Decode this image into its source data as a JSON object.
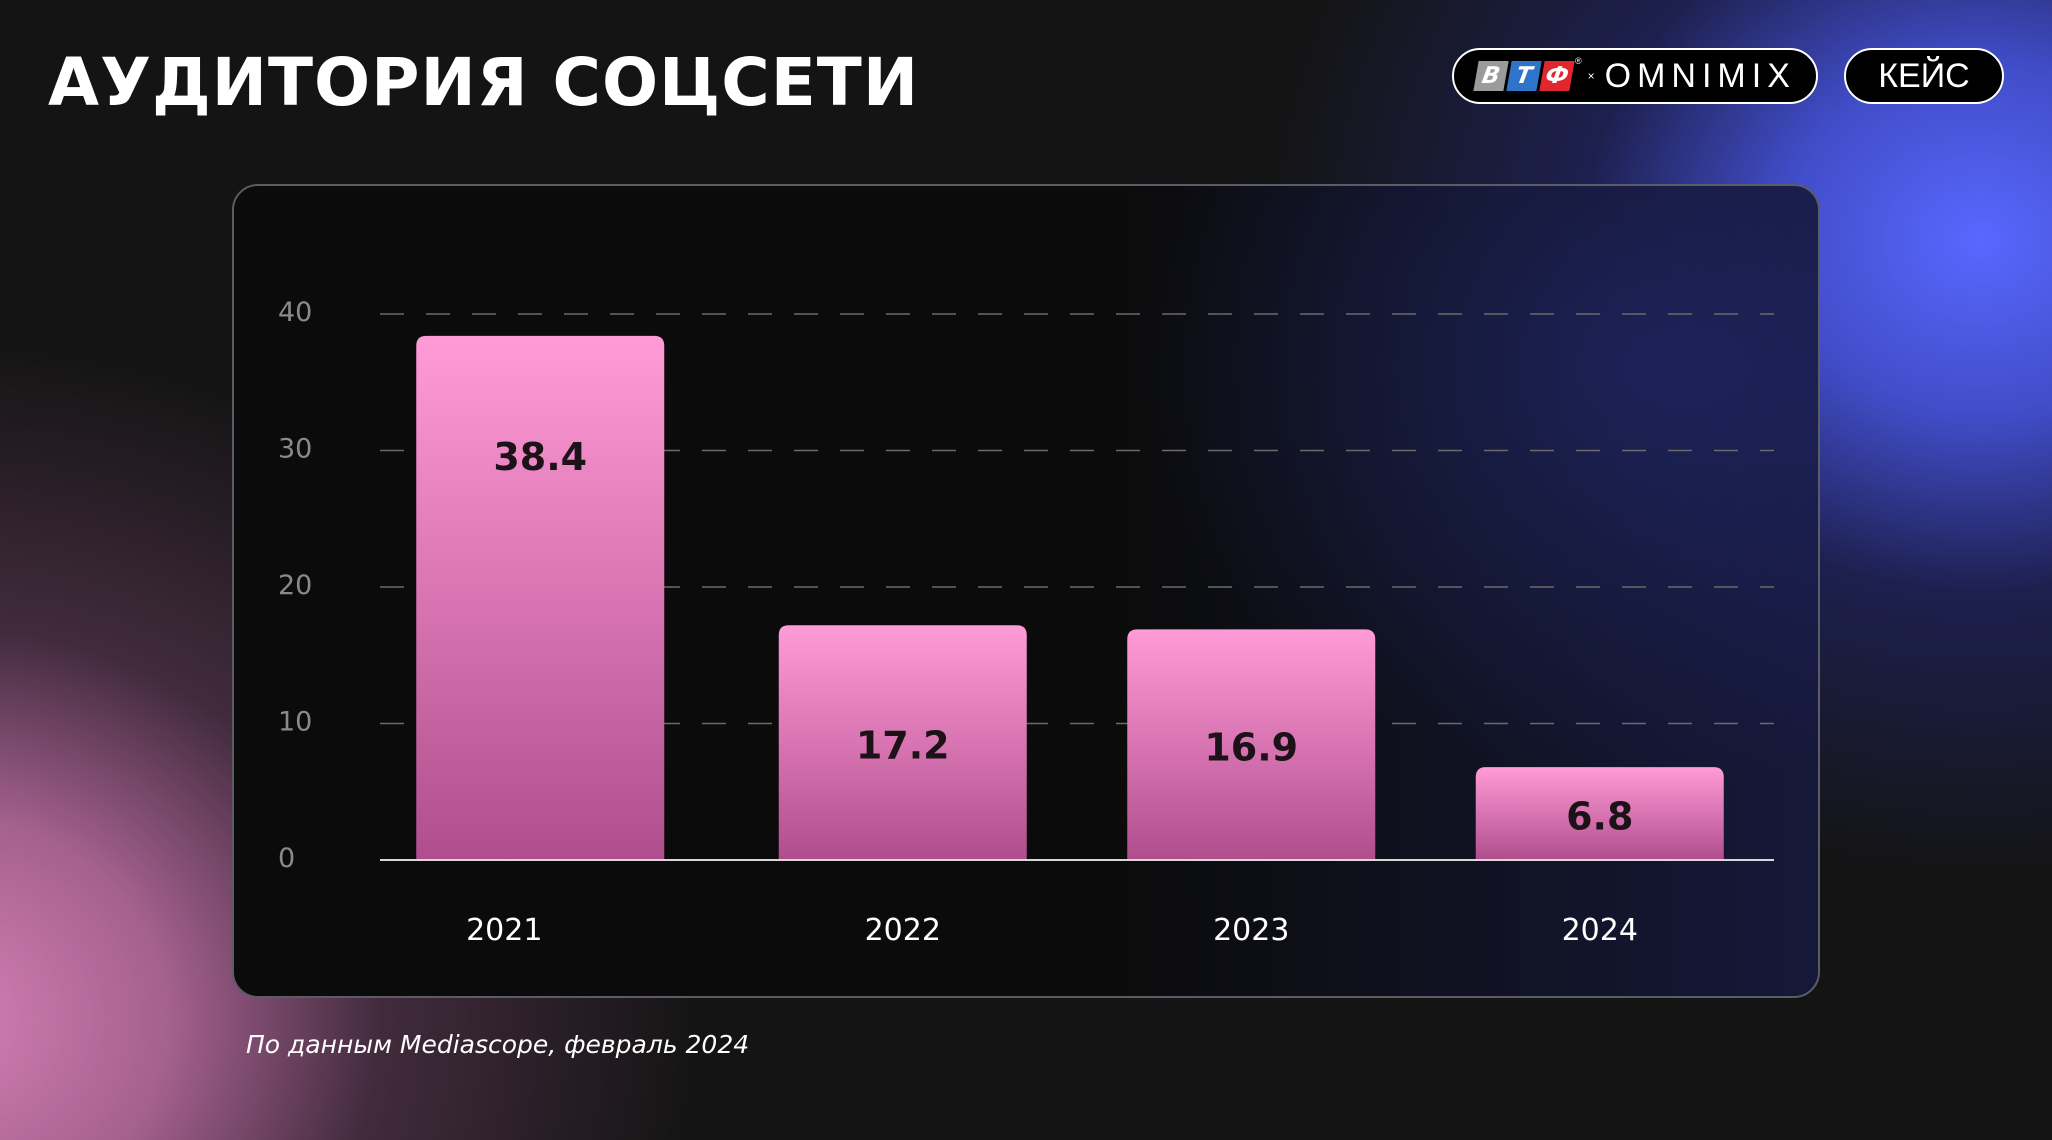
{
  "header": {
    "title": "АУДИТОРИЯ СОЦСЕТИ",
    "logo": {
      "letters": [
        {
          "char": "В",
          "color": "#9b9b9b"
        },
        {
          "char": "Т",
          "color": "#2e74c9"
        },
        {
          "char": "Ф",
          "color": "#e2262e"
        }
      ],
      "registered": "®",
      "separator": "×",
      "partner": "OMNIMIX"
    },
    "case_label": "КЕЙС"
  },
  "footer": {
    "source": "По данным Mediascope, февраль 2024"
  },
  "colors": {
    "bar_top": "#ff9bd6",
    "bar_bottom": "#b04e8d",
    "grid": "#6a6a6a",
    "axis": "#d8d8d8",
    "tick_label": "#8a8a8a",
    "value_label": "#1c1218"
  },
  "chart_data": {
    "type": "bar",
    "categories": [
      "2021",
      "2022",
      "2023",
      "2024"
    ],
    "values": [
      38.4,
      17.2,
      16.9,
      6.8
    ],
    "data_labels": [
      "38.4",
      "17.2",
      "16.9",
      "6.8"
    ],
    "yticks": [
      0,
      10,
      20,
      30,
      40
    ],
    "ylim": [
      0,
      40
    ],
    "grid": true,
    "title": "",
    "xlabel": "",
    "ylabel": ""
  }
}
